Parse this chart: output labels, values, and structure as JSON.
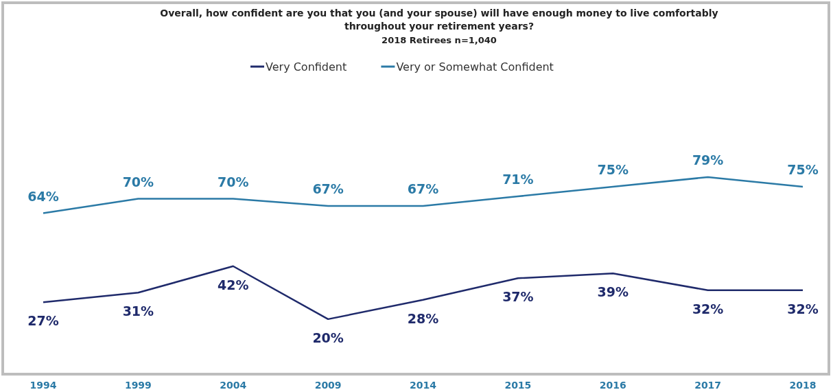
{
  "chart_data": {
    "type": "line",
    "title": "Overall, how confident are you that you (and your spouse) will have enough money to live comfortably throughout your retirement years?",
    "subtitle": "2018 Retirees n=1,040",
    "categories": [
      "1994",
      "1999",
      "2004",
      "2009",
      "2014",
      "2015",
      "2016",
      "2017",
      "2018"
    ],
    "series": [
      {
        "name": "Very Confident",
        "color": "#1f2a6b",
        "values": [
          27,
          31,
          42,
          20,
          28,
          37,
          39,
          32,
          32
        ],
        "value_labels": [
          "27%",
          "31%",
          "42%",
          "20%",
          "28%",
          "37%",
          "39%",
          "32%",
          "32%"
        ]
      },
      {
        "name": "Very or Somewhat Confident",
        "color": "#2b7aa6",
        "values": [
          64,
          70,
          70,
          67,
          67,
          71,
          75,
          79,
          75
        ],
        "value_labels": [
          "64%",
          "70%",
          "70%",
          "67%",
          "67%",
          "71%",
          "75%",
          "79%",
          "75%"
        ]
      }
    ],
    "legend": "top",
    "marker": "none",
    "line_style": "solid"
  }
}
